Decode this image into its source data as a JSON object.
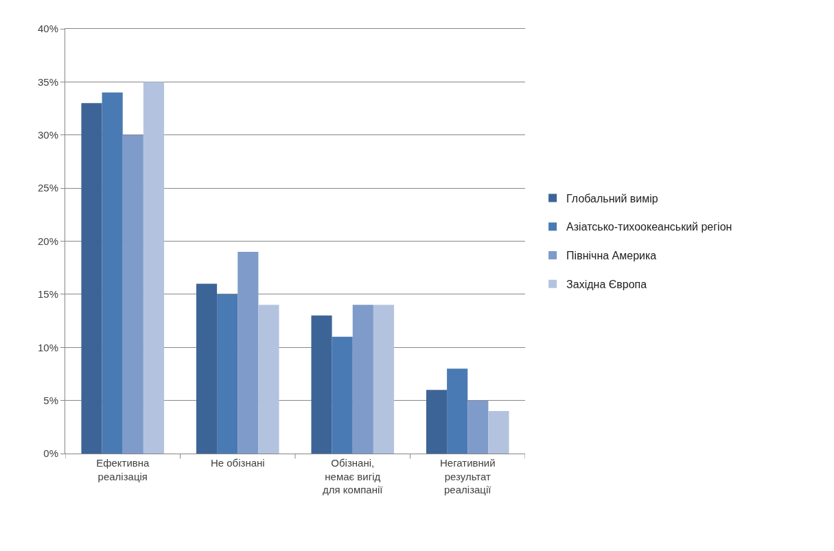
{
  "chart_data": {
    "type": "bar",
    "categories": [
      "Ефективна реалізація",
      "Не обізнані",
      "Обізнані, немає вигід для компанії",
      "Негативний результат реалізації"
    ],
    "series": [
      {
        "name": "Глобальний вимір",
        "color": "#3d6497",
        "values": [
          33,
          16,
          13,
          6
        ]
      },
      {
        "name": "Азіатсько-тихоокеанський регіон",
        "color": "#4a7ab3",
        "values": [
          34,
          15,
          11,
          8
        ]
      },
      {
        "name": "Північна Америка",
        "color": "#7f9bc9",
        "values": [
          30,
          19,
          14,
          5
        ]
      },
      {
        "name": "Західна Європа",
        "color": "#b3c3df",
        "values": [
          35,
          14,
          14,
          4
        ]
      }
    ],
    "ylim": [
      0,
      40
    ],
    "yticks": [
      {
        "value": 0,
        "label": "0%"
      },
      {
        "value": 5,
        "label": "5%"
      },
      {
        "value": 10,
        "label": "10%"
      },
      {
        "value": 15,
        "label": "15%"
      },
      {
        "value": 20,
        "label": "20%"
      },
      {
        "value": 25,
        "label": "25%"
      },
      {
        "value": 30,
        "label": "30%"
      },
      {
        "value": 35,
        "label": "35%"
      },
      {
        "value": 40,
        "label": "40%"
      }
    ],
    "grid": "y",
    "legend": "right"
  }
}
